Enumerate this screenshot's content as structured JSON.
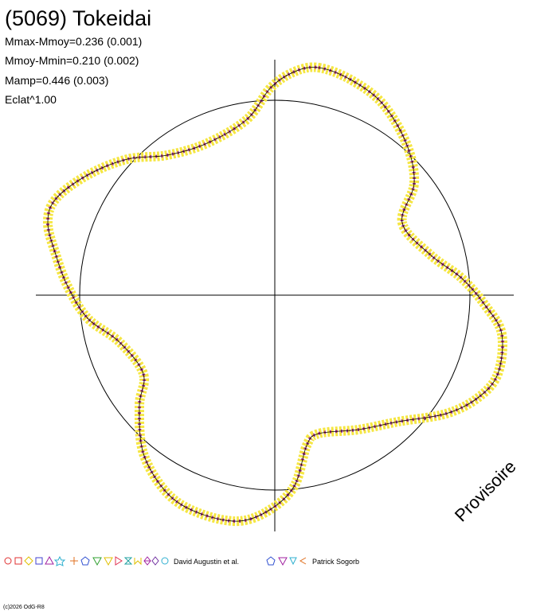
{
  "title": "(5069) Tokeidai",
  "stats": [
    "Mmax-Mmoy=0.236 (0.001)",
    "Mmoy-Mmin=0.210 (0.002)",
    "Mamp=0.446 (0.003)",
    "Eclat^1.00"
  ],
  "legend": [
    "David Augustin et al.",
    "Patrick Sogorb"
  ],
  "watermark": "Provisoire",
  "footer": "(c)2026 OdG-R8"
}
